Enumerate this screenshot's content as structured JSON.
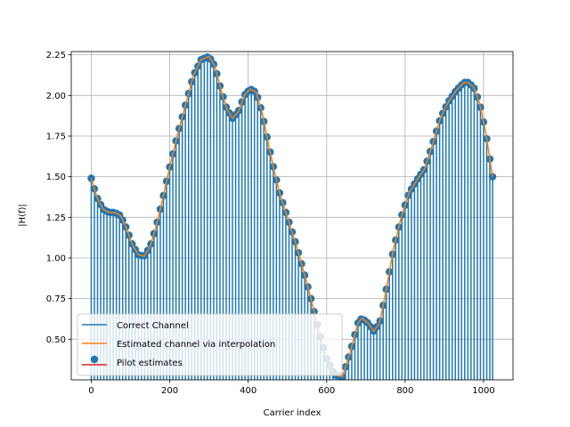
{
  "chart_data": {
    "type": "line",
    "xlabel": "Carrier index",
    "ylabel": "|H(f)|",
    "xlim": [
      -51,
      1075
    ],
    "ylim": [
      0.25,
      2.27
    ],
    "xticks": [
      0,
      200,
      400,
      600,
      800,
      1000
    ],
    "yticks": [
      0.5,
      0.75,
      1.0,
      1.25,
      1.5,
      1.75,
      2.0,
      2.25
    ],
    "ytick_labels": [
      "0.50",
      "0.75",
      "1.00",
      "1.25",
      "1.50",
      "1.75",
      "2.00",
      "2.25"
    ],
    "grid": true,
    "legend_position": "lower-left",
    "n_carriers": 1024,
    "pilot_spacing": 8,
    "stem_baseline": 0,
    "colors": {
      "correct": "#1f77b4",
      "estimated": "#ff7f0e",
      "pilot": "#d62728",
      "grid": "#b0b0b0"
    },
    "series": [
      {
        "name": "Correct Channel",
        "style": "stem"
      },
      {
        "name": "Estimated channel via interpolation",
        "style": "line"
      },
      {
        "name": "Pilot estimates",
        "style": "stem-markers"
      }
    ],
    "curve": {
      "x": [
        0,
        15,
        30,
        45,
        60,
        75,
        90,
        105,
        120,
        135,
        150,
        165,
        180,
        200,
        220,
        240,
        260,
        280,
        300,
        315,
        330,
        345,
        360,
        375,
        390,
        405,
        420,
        435,
        450,
        465,
        480,
        500,
        520,
        540,
        560,
        580,
        600,
        620,
        640,
        660,
        680,
        690,
        705,
        720,
        735,
        750,
        770,
        790,
        810,
        830,
        850,
        870,
        890,
        910,
        930,
        950,
        960,
        975,
        990,
        1005,
        1023
      ],
      "y": [
        1.49,
        1.37,
        1.3,
        1.28,
        1.28,
        1.26,
        1.18,
        1.08,
        1.02,
        1.01,
        1.07,
        1.19,
        1.34,
        1.56,
        1.76,
        1.94,
        2.12,
        2.22,
        2.24,
        2.18,
        2.04,
        1.92,
        1.86,
        1.9,
        2.0,
        2.04,
        2.02,
        1.9,
        1.72,
        1.55,
        1.4,
        1.25,
        1.1,
        0.93,
        0.75,
        0.55,
        0.38,
        0.28,
        0.27,
        0.42,
        0.6,
        0.63,
        0.6,
        0.55,
        0.6,
        0.78,
        1.05,
        1.25,
        1.4,
        1.48,
        1.55,
        1.7,
        1.86,
        1.96,
        2.03,
        2.08,
        2.08,
        2.05,
        1.95,
        1.78,
        1.5
      ]
    }
  }
}
